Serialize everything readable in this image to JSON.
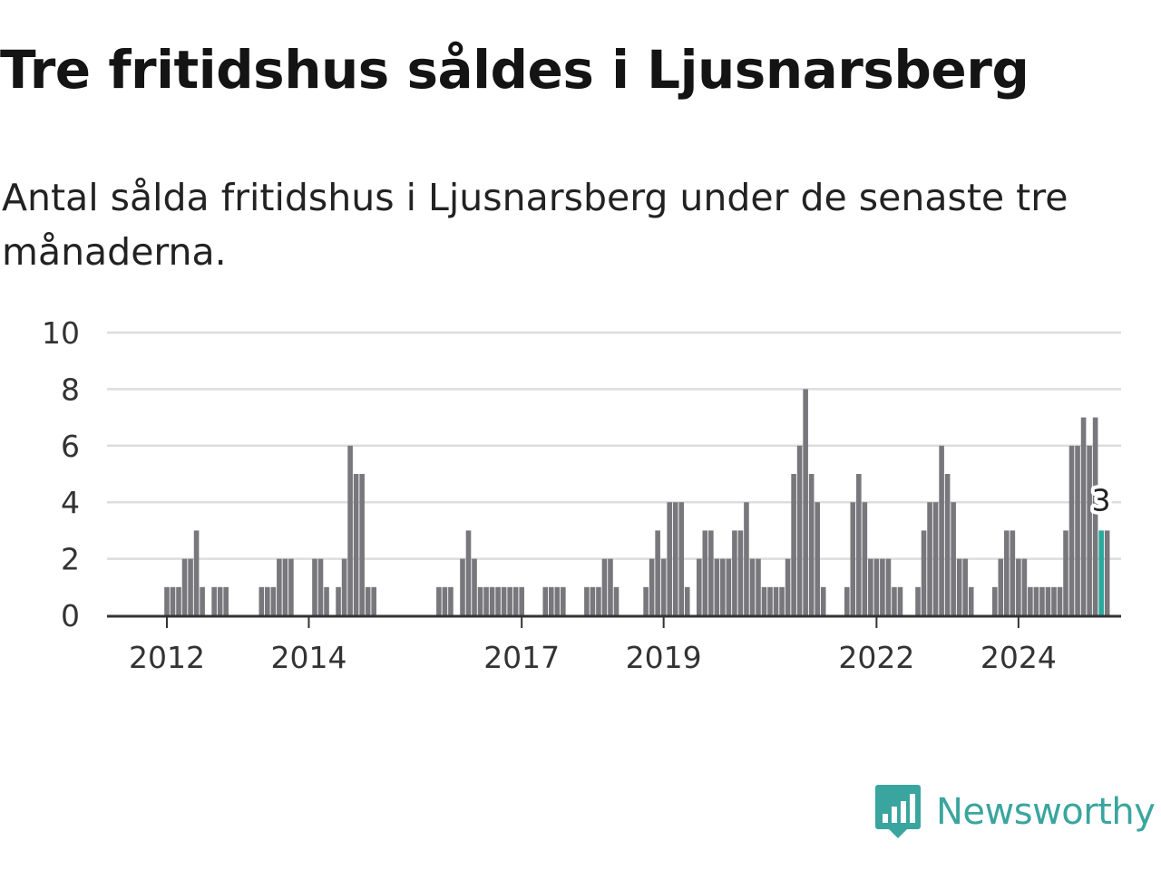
{
  "title": "Tre fritidshus såldes i Ljusnarsberg",
  "subtitle": "Antal sålda fritidshus i Ljusnarsberg under de senaste tre månaderna.",
  "brand": {
    "name": "Newsworthy",
    "icon": "newsworthy-logo-icon",
    "color": "#3aa59e"
  },
  "chart_data": {
    "type": "bar",
    "start": "2011-04",
    "frequency": "monthly",
    "values": [
      0,
      0,
      0,
      0,
      0,
      0,
      0,
      0,
      0,
      1,
      1,
      1,
      2,
      2,
      3,
      1,
      0,
      1,
      1,
      1,
      0,
      0,
      0,
      0,
      0,
      1,
      1,
      1,
      2,
      2,
      2,
      0,
      0,
      0,
      2,
      2,
      1,
      0,
      1,
      2,
      6,
      5,
      5,
      1,
      1,
      0,
      0,
      0,
      0,
      0,
      0,
      0,
      0,
      0,
      0,
      1,
      1,
      1,
      0,
      2,
      3,
      2,
      1,
      1,
      1,
      1,
      1,
      1,
      1,
      1,
      0,
      0,
      0,
      1,
      1,
      1,
      1,
      0,
      0,
      0,
      1,
      1,
      1,
      2,
      2,
      1,
      0,
      0,
      0,
      0,
      1,
      2,
      3,
      2,
      4,
      4,
      4,
      1,
      0,
      2,
      3,
      3,
      2,
      2,
      2,
      3,
      3,
      4,
      2,
      2,
      1,
      1,
      1,
      1,
      2,
      5,
      6,
      8,
      5,
      4,
      1,
      0,
      0,
      0,
      1,
      4,
      5,
      4,
      2,
      2,
      2,
      2,
      1,
      1,
      0,
      0,
      1,
      3,
      4,
      4,
      6,
      5,
      4,
      2,
      2,
      1,
      0,
      0,
      0,
      1,
      2,
      3,
      3,
      2,
      2,
      1,
      1,
      1,
      1,
      1,
      1,
      3,
      6,
      6,
      7,
      6,
      7,
      3,
      3
    ],
    "highlight": {
      "index": 167,
      "value": 3,
      "label": "3"
    },
    "x_ticks": [
      "2012",
      "2014",
      "2017",
      "2019",
      "2022",
      "2024"
    ],
    "ylim": [
      0,
      10
    ],
    "y_ticks": [
      0,
      2,
      4,
      6,
      8,
      10
    ],
    "grid": true,
    "colors": {
      "bar": "#77777c",
      "highlight": "#2aa89c",
      "grid": "#dddddd",
      "axis": "#333333"
    }
  }
}
